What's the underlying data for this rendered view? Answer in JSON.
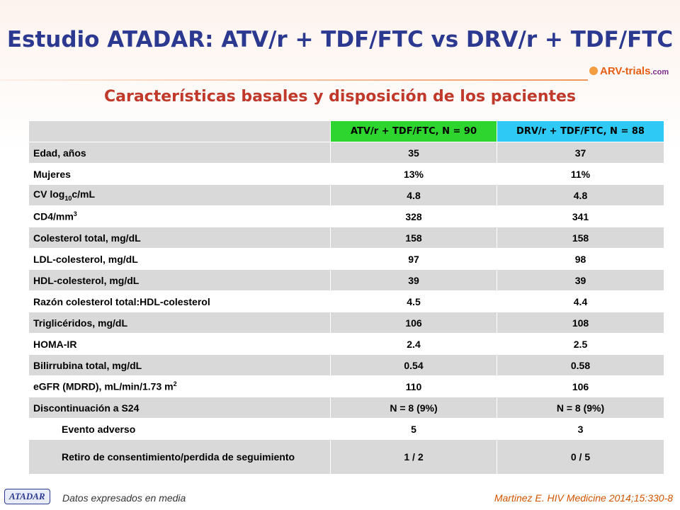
{
  "header": {
    "title": "Estudio ATADAR: ATV/r + TDF/FTC vs DRV/r + TDF/FTC",
    "logo": {
      "name": "ARV-trials",
      "suffix": ".com"
    },
    "subtitle": "Características basales y disposición de los pacientes"
  },
  "table": {
    "columns": [
      "ATV/r + TDF/FTC, N = 90",
      "DRV/r + TDF/FTC, N = 88"
    ],
    "rows": [
      {
        "label": [
          {
            "text": "Edad, años"
          }
        ],
        "values": [
          35,
          37
        ]
      },
      {
        "label": [
          {
            "text": "Mujeres"
          }
        ],
        "values": [
          "13%",
          "11%"
        ]
      },
      {
        "label": [
          {
            "text": "CV log"
          },
          {
            "sub": "10"
          },
          {
            "text": "c/mL"
          }
        ],
        "values": [
          4.8,
          4.8
        ]
      },
      {
        "label": [
          {
            "text": "CD4/mm"
          },
          {
            "sup": "3"
          }
        ],
        "values": [
          328,
          341
        ]
      },
      {
        "label": [
          {
            "text": "Colesterol total, mg/dL"
          }
        ],
        "values": [
          158,
          158
        ]
      },
      {
        "label": [
          {
            "text": "LDL-colesterol, mg/dL"
          }
        ],
        "values": [
          97,
          98
        ]
      },
      {
        "label": [
          {
            "text": "HDL-colesterol, mg/dL"
          }
        ],
        "values": [
          39,
          39
        ]
      },
      {
        "label": [
          {
            "text": "Razón colesterol total:HDL-colesterol"
          }
        ],
        "values": [
          4.5,
          4.4
        ]
      },
      {
        "label": [
          {
            "text": "Triglicéridos, mg/dL"
          }
        ],
        "values": [
          106,
          108
        ]
      },
      {
        "label": [
          {
            "text": "HOMA-IR"
          }
        ],
        "values": [
          2.4,
          2.5
        ]
      },
      {
        "label": [
          {
            "text": "Bilirrubina total, mg/dL"
          }
        ],
        "values": [
          0.54,
          0.58
        ]
      },
      {
        "label": [
          {
            "text": "eGFR (MDRD), mL/min/1.73 m"
          },
          {
            "sup": "2"
          }
        ],
        "values": [
          110,
          106
        ]
      },
      {
        "label": [
          {
            "text": "Discontinuación a S24"
          }
        ],
        "values": [
          "N = 8 (9%)",
          "N = 8 (9%)"
        ]
      },
      {
        "label": [
          {
            "text": "Evento adverso"
          }
        ],
        "values": [
          5,
          3
        ],
        "indent": true
      },
      {
        "label": [
          {
            "text": "Retiro de consentimiento/perdida de seguimiento"
          }
        ],
        "values": [
          "1 / 2",
          "0 / 5"
        ],
        "indent": true
      }
    ]
  },
  "footer": {
    "badge": "ATADAR",
    "note": "Datos expresados en media",
    "citation": "Martinez E. HIV Medicine 2014;15:330-8"
  }
}
